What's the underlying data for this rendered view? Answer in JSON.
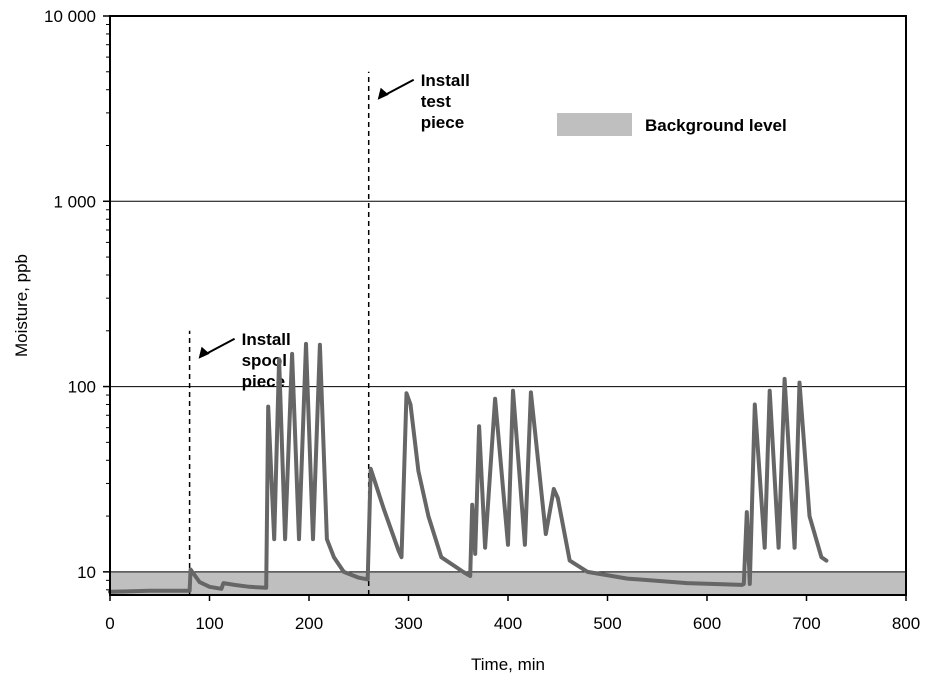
{
  "chart_data": {
    "type": "line",
    "xlabel": "Time, min",
    "ylabel": "Moisture, ppb",
    "xlim": [
      0,
      800
    ],
    "ylim": [
      7.5,
      10000
    ],
    "y_scale": "log",
    "x_ticks": [
      0,
      100,
      200,
      300,
      400,
      500,
      600,
      700,
      800
    ],
    "x_tick_labels": [
      "0",
      "100",
      "200",
      "300",
      "400",
      "500",
      "600",
      "700",
      "800"
    ],
    "y_ticks": [
      10,
      100,
      1000,
      10000
    ],
    "y_tick_labels": [
      "10",
      "100",
      "1 000",
      "10 000"
    ],
    "grid": "horizontal at major y ticks",
    "line_color": "#666666",
    "band_color": "#bfbfbf",
    "legend": {
      "label": "Background level",
      "placement": "top-right"
    },
    "background_band": {
      "ymin": 7.5,
      "ymax": 10
    },
    "annotations": [
      {
        "lines": [
          "Install",
          "spool",
          "piece"
        ],
        "x": 80,
        "ymax": 200
      },
      {
        "lines": [
          "Install",
          "test",
          "piece"
        ],
        "x": 260,
        "ymax": 5000
      }
    ],
    "series": [
      {
        "points": [
          [
            0,
            7.8
          ],
          [
            40,
            7.9
          ],
          [
            80,
            7.9
          ],
          [
            81,
            10.3
          ],
          [
            90,
            8.8
          ],
          [
            100,
            8.3
          ],
          [
            112,
            8.1
          ],
          [
            114,
            8.7
          ],
          [
            125,
            8.5
          ],
          [
            140,
            8.3
          ],
          [
            157,
            8.2
          ],
          [
            159,
            78
          ],
          [
            165,
            15
          ],
          [
            170,
            140
          ],
          [
            176,
            15
          ],
          [
            183,
            150
          ],
          [
            190,
            15
          ],
          [
            197,
            170
          ],
          [
            204,
            15
          ],
          [
            211,
            168
          ],
          [
            218,
            15
          ],
          [
            225,
            12
          ],
          [
            235,
            10
          ],
          [
            250,
            9.3
          ],
          [
            259,
            9.1
          ],
          [
            262,
            36
          ],
          [
            275,
            22
          ],
          [
            290,
            13
          ],
          [
            293,
            12
          ],
          [
            298,
            92
          ],
          [
            302,
            80
          ],
          [
            310,
            35
          ],
          [
            320,
            20
          ],
          [
            333,
            12
          ],
          [
            355,
            10
          ],
          [
            362,
            9.5
          ],
          [
            364,
            23
          ],
          [
            367,
            12.5
          ],
          [
            371,
            61
          ],
          [
            377,
            13.5
          ],
          [
            387,
            86
          ],
          [
            400,
            14
          ],
          [
            405,
            95
          ],
          [
            417,
            14
          ],
          [
            423,
            93
          ],
          [
            438,
            16
          ],
          [
            446,
            28
          ],
          [
            450,
            25
          ],
          [
            462,
            11.5
          ],
          [
            480,
            10
          ],
          [
            520,
            9.2
          ],
          [
            580,
            8.7
          ],
          [
            635,
            8.5
          ],
          [
            637,
            8.6
          ],
          [
            640,
            21
          ],
          [
            643,
            8.6
          ],
          [
            648,
            80
          ],
          [
            658,
            13.5
          ],
          [
            663,
            95
          ],
          [
            672,
            13.5
          ],
          [
            678,
            110
          ],
          [
            688,
            13.5
          ],
          [
            693,
            105
          ],
          [
            703,
            20
          ],
          [
            715,
            12
          ],
          [
            720,
            11.5
          ]
        ]
      }
    ]
  }
}
